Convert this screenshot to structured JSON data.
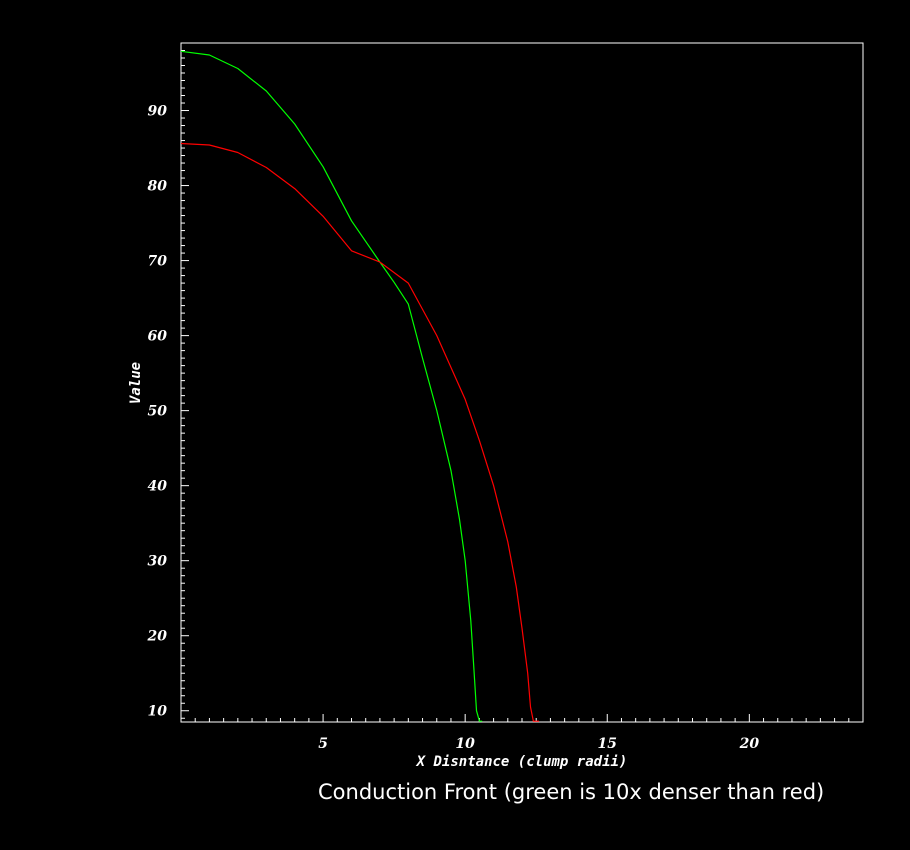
{
  "caption": "Conduction Front (green is 10x denser than red)",
  "chart_data": {
    "type": "line",
    "xlabel": "X Disntance (clump radii)",
    "ylabel": "Value",
    "xlim": [
      0,
      24
    ],
    "ylim": [
      8.5,
      99
    ],
    "x_ticks": [
      5,
      10,
      15,
      20
    ],
    "y_ticks": [
      10,
      20,
      30,
      40,
      50,
      60,
      70,
      80,
      90
    ],
    "grid": false,
    "background": "#000000",
    "series": [
      {
        "color": "#00ff00",
        "x": [
          0.0,
          1.0,
          2.0,
          3.0,
          4.0,
          5.0,
          6.0,
          7.0,
          7.5,
          8.0,
          8.5,
          9.0,
          9.5,
          9.8,
          10.0,
          10.2,
          10.3,
          10.4,
          10.5,
          10.6
        ],
        "y": [
          97.9,
          97.4,
          95.6,
          92.6,
          88.2,
          82.5,
          75.3,
          69.8,
          67.1,
          64.2,
          57.0,
          50.0,
          42.0,
          35.5,
          30.0,
          22.0,
          16.0,
          10.0,
          8.6,
          8.6
        ]
      },
      {
        "color": "#ff0000",
        "x": [
          0.0,
          1.0,
          2.0,
          3.0,
          4.0,
          5.0,
          6.0,
          7.0,
          8.0,
          9.0,
          10.0,
          10.5,
          11.0,
          11.5,
          11.8,
          12.0,
          12.2,
          12.3,
          12.4,
          12.6
        ],
        "y": [
          85.6,
          85.4,
          84.4,
          82.4,
          79.6,
          75.9,
          71.3,
          69.8,
          67.0,
          60.0,
          51.5,
          46.0,
          40.0,
          32.5,
          26.5,
          21.0,
          15.0,
          10.5,
          8.6,
          8.6
        ]
      }
    ]
  }
}
